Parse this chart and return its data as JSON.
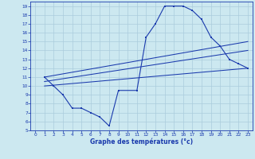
{
  "background_color": "#cce8f0",
  "grid_color": "#aaccdd",
  "line_color": "#1a3aad",
  "xlabel": "Graphe des températures (°c)",
  "xlim": [
    -0.5,
    23.5
  ],
  "ylim": [
    5,
    19.5
  ],
  "yticks": [
    5,
    6,
    7,
    8,
    9,
    10,
    11,
    12,
    13,
    14,
    15,
    16,
    17,
    18,
    19
  ],
  "xticks": [
    0,
    1,
    2,
    3,
    4,
    5,
    6,
    7,
    8,
    9,
    10,
    11,
    12,
    13,
    14,
    15,
    16,
    17,
    18,
    19,
    20,
    21,
    22,
    23
  ],
  "curve1_x": [
    1,
    2,
    3,
    4,
    5,
    6,
    7,
    8,
    9,
    11,
    12,
    13,
    14,
    15,
    16,
    17,
    18,
    19,
    20,
    21,
    22,
    23
  ],
  "curve1_y": [
    11.0,
    10.0,
    9.0,
    7.5,
    7.5,
    7.0,
    6.5,
    5.5,
    9.5,
    9.5,
    15.5,
    17.0,
    19.0,
    19.0,
    19.0,
    18.5,
    17.5,
    15.5,
    14.5,
    13.0,
    12.5,
    12.0
  ],
  "line2_x": [
    1,
    23
  ],
  "line2_y": [
    11.0,
    15.0
  ],
  "line3_x": [
    1,
    23
  ],
  "line3_y": [
    10.0,
    12.0
  ],
  "line4_x": [
    1,
    23
  ],
  "line4_y": [
    10.5,
    14.0
  ]
}
